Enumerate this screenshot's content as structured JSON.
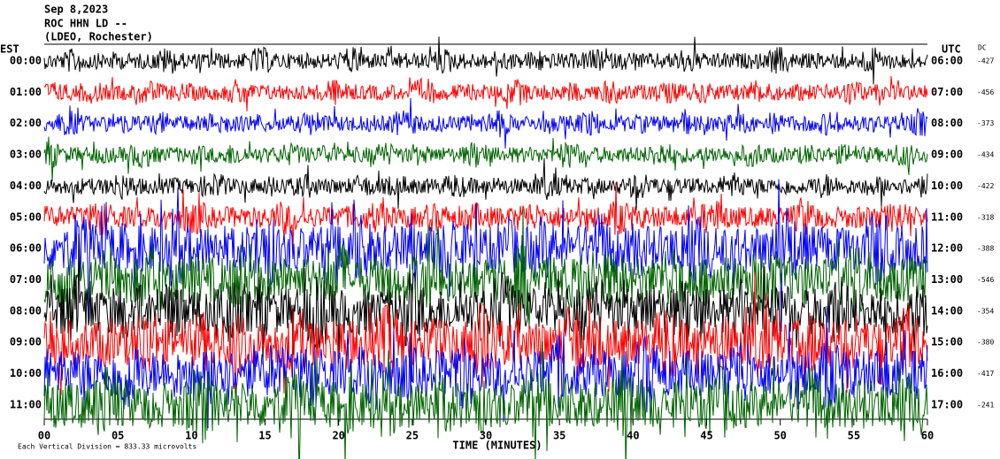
{
  "header": {
    "date": "Sep 8,2023",
    "station": "ROC HHN LD --",
    "network": "(LDEO, Rochester)"
  },
  "left_zone": "EST",
  "right_zone": "UTC",
  "dc_label": "DC",
  "rows": [
    {
      "est": "00:00",
      "utc": "06:00",
      "dc": "-427",
      "color": "#000000"
    },
    {
      "est": "01:00",
      "utc": "07:00",
      "dc": "-456",
      "color": "#ff0000"
    },
    {
      "est": "02:00",
      "utc": "08:00",
      "dc": "-373",
      "color": "#0000ff"
    },
    {
      "est": "03:00",
      "utc": "09:00",
      "dc": "-434",
      "color": "#006400"
    },
    {
      "est": "04:00",
      "utc": "10:00",
      "dc": "-422",
      "color": "#000000"
    },
    {
      "est": "05:00",
      "utc": "11:00",
      "dc": "-318",
      "color": "#ff0000"
    },
    {
      "est": "06:00",
      "utc": "12:00",
      "dc": "-388",
      "color": "#0000ff"
    },
    {
      "est": "07:00",
      "utc": "13:00",
      "dc": "-546",
      "color": "#006400"
    },
    {
      "est": "08:00",
      "utc": "14:00",
      "dc": "-354",
      "color": "#000000"
    },
    {
      "est": "09:00",
      "utc": "15:00",
      "dc": "-380",
      "color": "#ff0000"
    },
    {
      "est": "10:00",
      "utc": "16:00",
      "dc": "-417",
      "color": "#0000ff"
    },
    {
      "est": "11:00",
      "utc": "17:00",
      "dc": "-241",
      "color": "#006400"
    }
  ],
  "x_axis": {
    "label": "TIME (MINUTES)",
    "xlim": [
      0,
      60
    ],
    "ticks": [
      {
        "value": 0,
        "label": "00"
      },
      {
        "value": 5,
        "label": "05"
      },
      10,
      15,
      20,
      25,
      30,
      35,
      40,
      45,
      50,
      55,
      60
    ]
  },
  "footer": "Each Vertical Division = 833.33 microvolts"
}
